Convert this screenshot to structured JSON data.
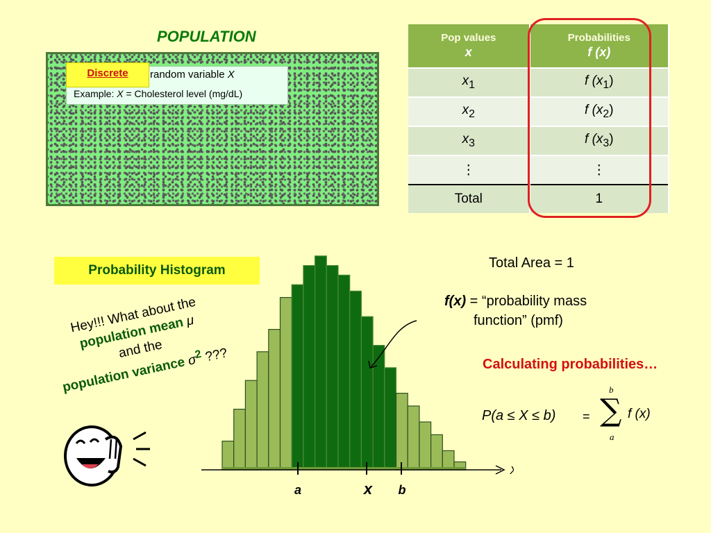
{
  "population": {
    "title": "POPULATION",
    "badge": "Discrete",
    "rv_text": "random variable",
    "rv_var": "X",
    "example_label": "Example:",
    "example_var": "X",
    "example_text": "= Cholesterol level (mg/dL)"
  },
  "table": {
    "header_pop": "Pop values",
    "header_pop_var": "x",
    "header_prob": "Probabilities",
    "header_prob_expr": "f (x)",
    "rows": [
      {
        "x": "x",
        "sub": "1",
        "f": "f (x",
        "fsub": "1",
        "fend": ")"
      },
      {
        "x": "x",
        "sub": "2",
        "f": "f (x",
        "fsub": "2",
        "fend": ")"
      },
      {
        "x": "x",
        "sub": "3",
        "f": "f (x",
        "fsub": "3",
        "fend": ")"
      },
      {
        "x": "⋮",
        "sub": "",
        "f": "⋮",
        "fsub": "",
        "fend": ""
      }
    ],
    "total_label": "Total",
    "total_value": "1"
  },
  "histogram_label": "Probability Histogram",
  "hey": {
    "line1": "Hey!!!  What about the",
    "line2": "population mean",
    "mu": "μ",
    "line3": "and the",
    "line4": "population variance",
    "sigma": "σ",
    "sq": "2",
    "q": "???"
  },
  "right": {
    "total_area": "Total Area = 1",
    "pmf_lhs": "f(x)",
    "pmf_eq": "= “probability mass",
    "pmf_line2": "function” (pmf)",
    "calculating": "Calculating probabilities…"
  },
  "formula": {
    "lhs": "P(a ≤ X ≤ b)",
    "eq": "=",
    "sum": "∑",
    "upper": "b",
    "lower": "a",
    "rhs": "f (x)"
  },
  "axis": {
    "x_label": "X",
    "a": "a",
    "x": "x",
    "b": "b"
  },
  "chart_data": {
    "type": "bar",
    "bar_heights_relative": [
      0.18,
      0.38,
      0.56,
      0.74,
      0.88,
      1.08,
      1.16,
      1.28,
      1.34,
      1.28,
      1.22,
      1.12,
      0.96,
      0.78,
      0.64,
      0.48,
      0.4,
      0.3,
      0.22,
      0.12,
      0.05
    ],
    "highlighted_range": [
      6,
      14
    ],
    "colors": {
      "light": "#9bbb59",
      "dark": "#0f6b0f",
      "edge": "#2f4f1f"
    }
  }
}
